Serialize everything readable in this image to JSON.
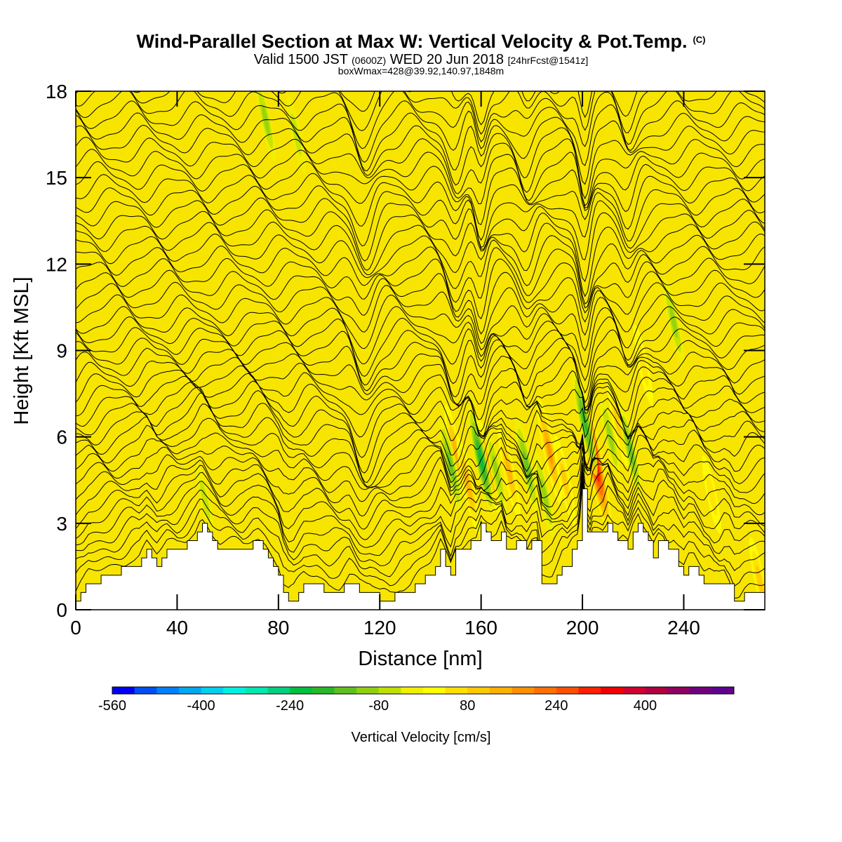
{
  "header": {
    "title": "Wind-Parallel Section at Max W: Vertical Velocity & Pot.Temp.",
    "copyright": "(C)",
    "valid_prefix": "Valid 1500 JST",
    "valid_utc": "(0600Z)",
    "valid_date": "WED 20 Jun 2018",
    "forecast": "[24hrFcst@1541z]",
    "box_info": "boxWmax=428@39.92,140.97,1848m"
  },
  "chart_data": {
    "type": "heatmap",
    "title": "Wind-Parallel Section at Max W: Vertical Velocity & Pot.Temp.",
    "xlabel": "Distance [nm]",
    "ylabel": "Height [Kft MSL]",
    "xlim": [
      0,
      272
    ],
    "ylim": [
      0,
      18
    ],
    "x_ticks": [
      0,
      40,
      80,
      120,
      160,
      200,
      240
    ],
    "y_ticks": [
      0,
      3,
      6,
      9,
      12,
      15,
      18
    ],
    "terrain": {
      "x": [
        0,
        3,
        5,
        15,
        22,
        25,
        28,
        32,
        34,
        36,
        40,
        44,
        47,
        49,
        50,
        52,
        54,
        57,
        62,
        66,
        70,
        72,
        75,
        78,
        80,
        82,
        84,
        86,
        88,
        90,
        95,
        100,
        104,
        108,
        112,
        116,
        120,
        124,
        128,
        132,
        136,
        140,
        142,
        144,
        146,
        148,
        150,
        152,
        155,
        158,
        160,
        162,
        164,
        166,
        168,
        170,
        172,
        174,
        176,
        178,
        180,
        182,
        184,
        186,
        188,
        190,
        192,
        194,
        196,
        198,
        199,
        200,
        201,
        202,
        203,
        204,
        205,
        206,
        208,
        210,
        212,
        214,
        216,
        218,
        220,
        222,
        224,
        226,
        228,
        230,
        232,
        234,
        236,
        238,
        240,
        242,
        244,
        246,
        248,
        250,
        252,
        254,
        256,
        258,
        260,
        262,
        264,
        266,
        268,
        272
      ],
      "y": [
        0.3,
        0.6,
        0.9,
        1.2,
        1.6,
        1.6,
        2.0,
        1.6,
        1.8,
        2.0,
        2.0,
        2.3,
        2.6,
        2.9,
        2.9,
        2.6,
        2.3,
        2.0,
        2.0,
        2.0,
        2.3,
        2.3,
        2.0,
        1.6,
        1.3,
        0.6,
        0.3,
        0.3,
        0.6,
        0.9,
        0.9,
        0.6,
        0.6,
        0.9,
        0.6,
        0.6,
        0.3,
        0.3,
        0.6,
        0.6,
        1.0,
        1.3,
        1.6,
        2.0,
        1.6,
        1.3,
        2.0,
        2.0,
        2.3,
        2.3,
        2.9,
        2.6,
        2.3,
        2.3,
        2.6,
        2.0,
        2.0,
        2.3,
        2.3,
        2.0,
        2.3,
        2.3,
        1.0,
        1.0,
        1.0,
        1.3,
        1.6,
        1.6,
        2.0,
        2.3,
        3.0,
        4.3,
        3.0,
        2.6,
        2.3,
        2.6,
        2.6,
        2.6,
        2.6,
        3.0,
        2.6,
        2.3,
        2.3,
        2.0,
        2.6,
        3.0,
        2.6,
        2.3,
        1.9,
        2.3,
        2.3,
        2.0,
        2.0,
        1.6,
        1.3,
        1.6,
        1.6,
        1.3,
        1.0,
        1.0,
        0.8,
        0.8,
        1.0,
        0.8,
        0.3,
        0.3,
        0.5,
        0.6,
        0.6,
        0.6
      ]
    },
    "updrafts": [
      {
        "x": 150,
        "z": 5.5,
        "w": 150
      },
      {
        "x": 155,
        "z": 4.3,
        "w": 160
      },
      {
        "x": 163,
        "z": 5.0,
        "w": 150
      },
      {
        "x": 171,
        "z": 4.8,
        "w": 140
      },
      {
        "x": 187,
        "z": 5.5,
        "w": 200
      },
      {
        "x": 193,
        "z": 4.5,
        "w": 130
      },
      {
        "x": 204,
        "z": 5.5,
        "w": 430
      },
      {
        "x": 214,
        "z": 6.5,
        "w": 120
      },
      {
        "x": 224,
        "z": 8.5,
        "w": 90
      },
      {
        "x": 251,
        "z": 4.0,
        "w": 80
      },
      {
        "x": 270,
        "z": 1.0,
        "w": 120
      }
    ],
    "downdrafts": [
      {
        "x": 148,
        "z": 5.0,
        "w": -160
      },
      {
        "x": 160,
        "z": 5.2,
        "w": -220
      },
      {
        "x": 166,
        "z": 4.8,
        "w": -120
      },
      {
        "x": 178,
        "z": 5.0,
        "w": -160
      },
      {
        "x": 185,
        "z": 4.0,
        "w": -120
      },
      {
        "x": 201,
        "z": 6.5,
        "w": -200
      },
      {
        "x": 211,
        "z": 6.0,
        "w": -100
      },
      {
        "x": 219,
        "z": 5.5,
        "w": -140
      },
      {
        "x": 236,
        "z": 10.0,
        "w": -120
      },
      {
        "x": 51,
        "z": 3.8,
        "w": -60
      },
      {
        "x": 75,
        "z": 17.0,
        "w": -100
      },
      {
        "x": 87,
        "z": 16.5,
        "w": -80
      }
    ],
    "colorbar": {
      "title": "Vertical Velocity [cm/s]",
      "tick_labels": [
        "-560",
        "-400",
        "-240",
        "-80",
        "80",
        "240",
        "400"
      ],
      "tick_values": [
        -560,
        -400,
        -240,
        -80,
        80,
        240,
        400
      ],
      "range": [
        -560,
        560
      ],
      "interval": 40,
      "colors": [
        "#0000f0",
        "#0050f0",
        "#0080ff",
        "#00a8f0",
        "#00d0f0",
        "#00f0e0",
        "#00e8b0",
        "#00d080",
        "#00c040",
        "#28b828",
        "#60c020",
        "#90d010",
        "#c0e000",
        "#f0f000",
        "#ffff00",
        "#ffe000",
        "#ffc800",
        "#ffb000",
        "#ff9000",
        "#ff7000",
        "#ff5000",
        "#ff2000",
        "#f00000",
        "#d00030",
        "#b00040",
        "#900060",
        "#700080",
        "#60008f"
      ]
    },
    "isentropes_on": true,
    "grid": false
  }
}
